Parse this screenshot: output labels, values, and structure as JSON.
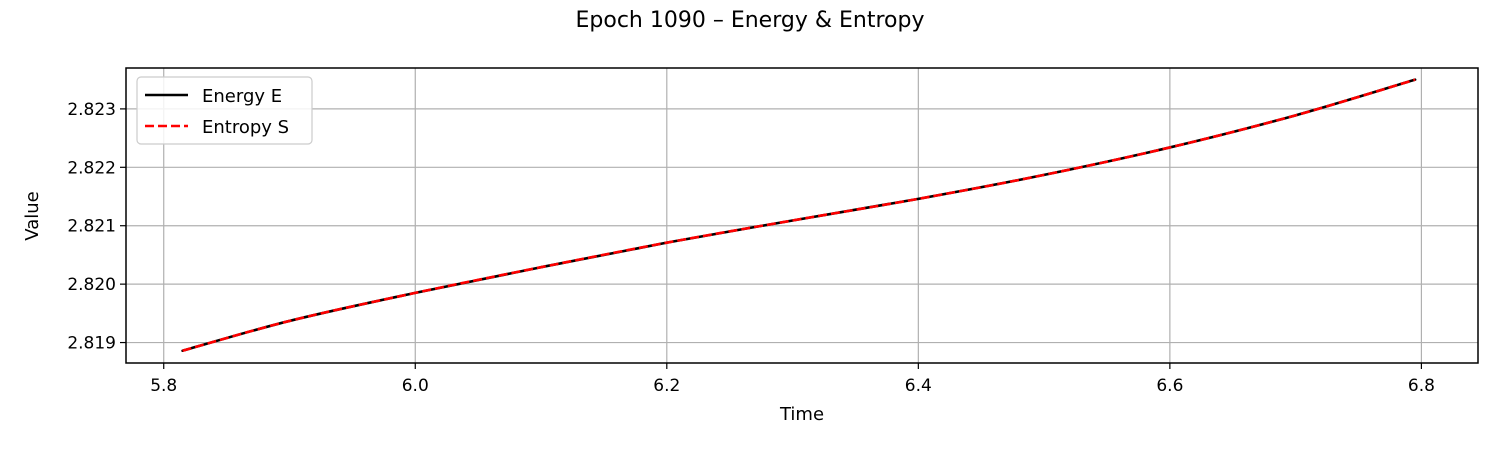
{
  "chart_data": {
    "type": "line",
    "title": "Epoch 1090 – Energy & Entropy",
    "xlabel": "Time",
    "ylabel": "Value",
    "xlim": [
      5.77,
      6.845
    ],
    "ylim": [
      2.81865,
      2.8237
    ],
    "xticks": [
      5.8,
      6.0,
      6.2,
      6.4,
      6.6,
      6.8
    ],
    "xtick_labels": [
      "5.8",
      "6.0",
      "6.2",
      "6.4",
      "6.6",
      "6.8"
    ],
    "yticks": [
      2.819,
      2.82,
      2.821,
      2.822,
      2.823
    ],
    "ytick_labels": [
      "2.819",
      "2.820",
      "2.821",
      "2.822",
      "2.823"
    ],
    "grid": true,
    "legend_position": "upper-left",
    "series": [
      {
        "name": "Energy E",
        "color": "#000000",
        "style": "solid",
        "x": [
          5.815,
          5.9,
          6.0,
          6.1,
          6.2,
          6.3,
          6.4,
          6.5,
          6.6,
          6.7,
          6.795
        ],
        "y": [
          2.81886,
          2.81937,
          2.81985,
          2.82029,
          2.82071,
          2.82109,
          2.82146,
          2.82187,
          2.82234,
          2.82289,
          2.8235
        ]
      },
      {
        "name": "Entropy S",
        "color": "#ff0000",
        "style": "dashed",
        "x": [
          5.815,
          5.9,
          6.0,
          6.1,
          6.2,
          6.3,
          6.4,
          6.5,
          6.6,
          6.7,
          6.795
        ],
        "y": [
          2.81886,
          2.81937,
          2.81985,
          2.82029,
          2.82071,
          2.82109,
          2.82146,
          2.82187,
          2.82234,
          2.82289,
          2.8235
        ]
      }
    ]
  }
}
